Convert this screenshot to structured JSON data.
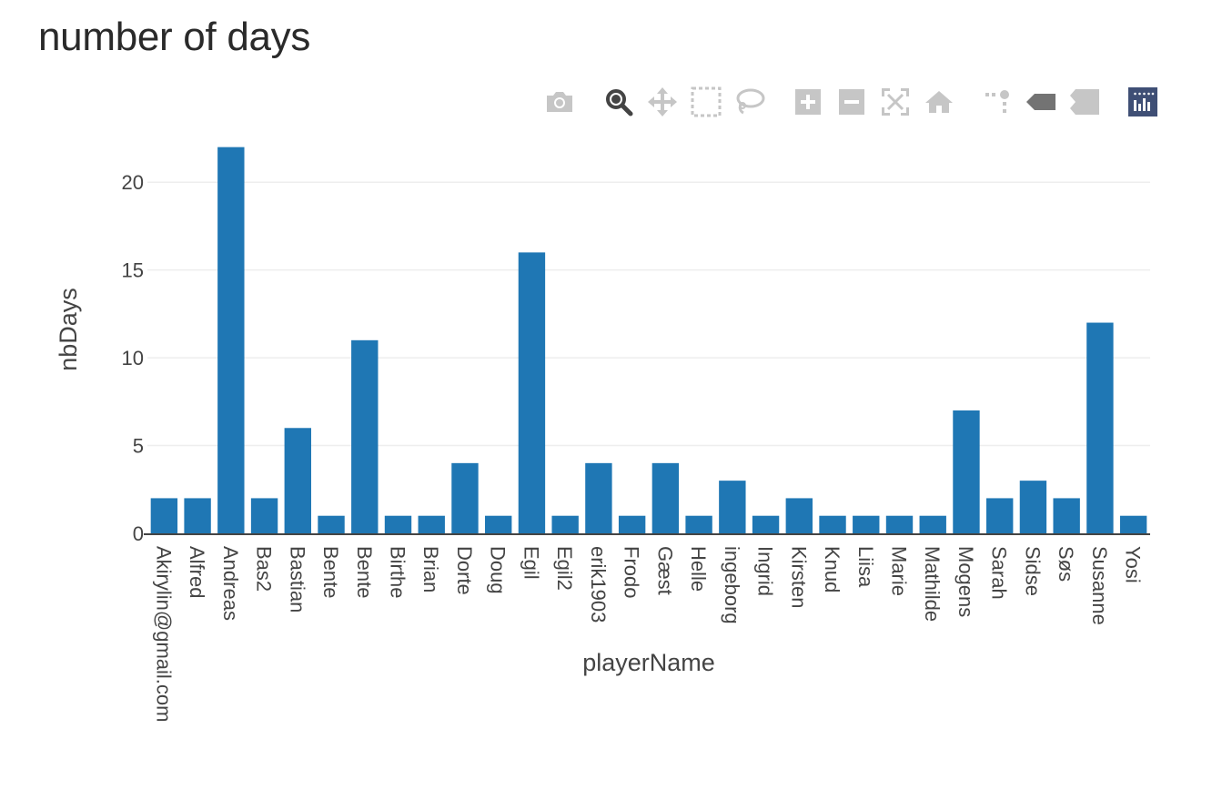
{
  "page": {
    "title": "number of days"
  },
  "modebar": {
    "buttons": [
      {
        "name": "camera-icon"
      },
      {
        "name": "zoom-icon"
      },
      {
        "name": "pan-icon"
      },
      {
        "name": "box-select-icon"
      },
      {
        "name": "lasso-select-icon"
      },
      {
        "name": "zoom-in-icon"
      },
      {
        "name": "zoom-out-icon"
      },
      {
        "name": "autoscale-icon"
      },
      {
        "name": "home-icon"
      },
      {
        "name": "spike-lines-icon"
      },
      {
        "name": "hover-closest-icon"
      },
      {
        "name": "hover-compare-icon"
      },
      {
        "name": "plotly-logo-icon"
      }
    ],
    "active_color": "#444444",
    "inactive_color": "#c6c6c6",
    "logo_color": "#3f4f75"
  },
  "chart_data": {
    "type": "bar",
    "title": "",
    "xlabel": "playerName",
    "ylabel": "nbDays",
    "categories": [
      "Akirylin@gmail.com",
      "Alfred",
      "Andreas",
      "Bas2",
      "Bastian",
      "Bente",
      "Bente",
      "Birthe",
      "Brian",
      "Dorte",
      "Doug",
      "Egil",
      "Egil2",
      "erik1903",
      "Frodo",
      "Gæst",
      "Helle",
      "ingeborg",
      "Ingrid",
      "Kirsten",
      "Knud",
      "Liisa",
      "Marie",
      "Mathilde",
      "Mogens",
      "Sarah",
      "Sidse",
      "Søs",
      "Susanne",
      "Yosi"
    ],
    "values": [
      2,
      2,
      22,
      2,
      6,
      1,
      11,
      1,
      1,
      4,
      1,
      16,
      1,
      4,
      1,
      4,
      1,
      3,
      1,
      2,
      1,
      1,
      1,
      1,
      7,
      2,
      3,
      2,
      12,
      1
    ],
    "ylim": [
      0,
      22.5
    ],
    "yticks": [
      0,
      5,
      10,
      15,
      20
    ],
    "grid": true,
    "bar_color": "#1f77b4",
    "grid_color": "#eeeeee"
  }
}
